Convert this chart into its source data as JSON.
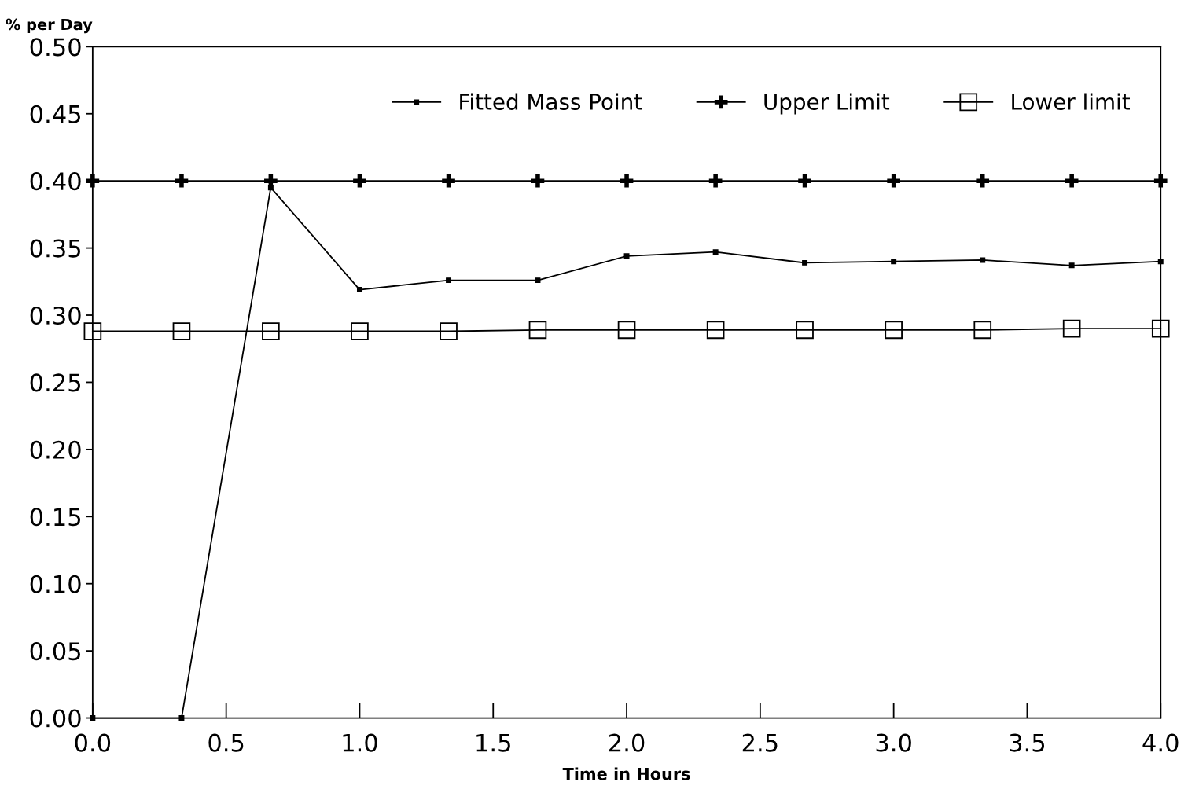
{
  "chart_data": {
    "type": "line",
    "xlabel": "Time in Hours",
    "ylabel": "% per Day",
    "x": [
      0,
      0.333,
      0.667,
      1.0,
      1.333,
      1.667,
      2.0,
      2.333,
      2.667,
      3.0,
      3.333,
      3.667,
      4.0
    ],
    "series": [
      {
        "name": "Fitted Mass Point",
        "color": "#000000",
        "marker": "square",
        "values": [
          0,
          0,
          0.395,
          0.319,
          0.326,
          0.326,
          0.344,
          0.347,
          0.339,
          0.34,
          0.341,
          0.337,
          0.34
        ]
      },
      {
        "name": "Upper Limit",
        "color": "#000000",
        "marker": "cross",
        "values": [
          0.4,
          0.4,
          0.4,
          0.4,
          0.4,
          0.4,
          0.4,
          0.4,
          0.4,
          0.4,
          0.4,
          0.4,
          0.4
        ]
      },
      {
        "name": "Lower limit",
        "color": "#000000",
        "marker": "square",
        "values": [
          0.288,
          0.288,
          0.288,
          0.288,
          0.288,
          0.289,
          0.289,
          0.289,
          0.289,
          0.289,
          0.289,
          0.29,
          0.29
        ]
      }
    ],
    "xlim": [
      0,
      4
    ],
    "xticks": [
      {
        "value": 0,
        "label": "0.0"
      },
      0.5,
      {
        "value": 1,
        "label": "1.0"
      },
      1.5,
      {
        "value": 2,
        "label": "2.0"
      },
      2.5,
      {
        "value": 3,
        "label": "3.0"
      },
      3.5,
      {
        "value": 4,
        "label": "4.0"
      }
    ],
    "ylim": [
      0,
      0.5
    ],
    "yticks": [
      {
        "value": 0,
        "label": "0.00"
      },
      0.05,
      {
        "value": 0.1,
        "label": "0.10"
      },
      0.15,
      {
        "value": 0.2,
        "label": "0.20"
      },
      0.25,
      {
        "value": 0.3,
        "label": "0.30"
      },
      0.35,
      {
        "value": 0.4,
        "label": "0.40"
      },
      0.45,
      {
        "value": 0.5,
        "label": "0.50"
      }
    ],
    "grid": false,
    "legend": "top right",
    "line_style": "solid"
  }
}
